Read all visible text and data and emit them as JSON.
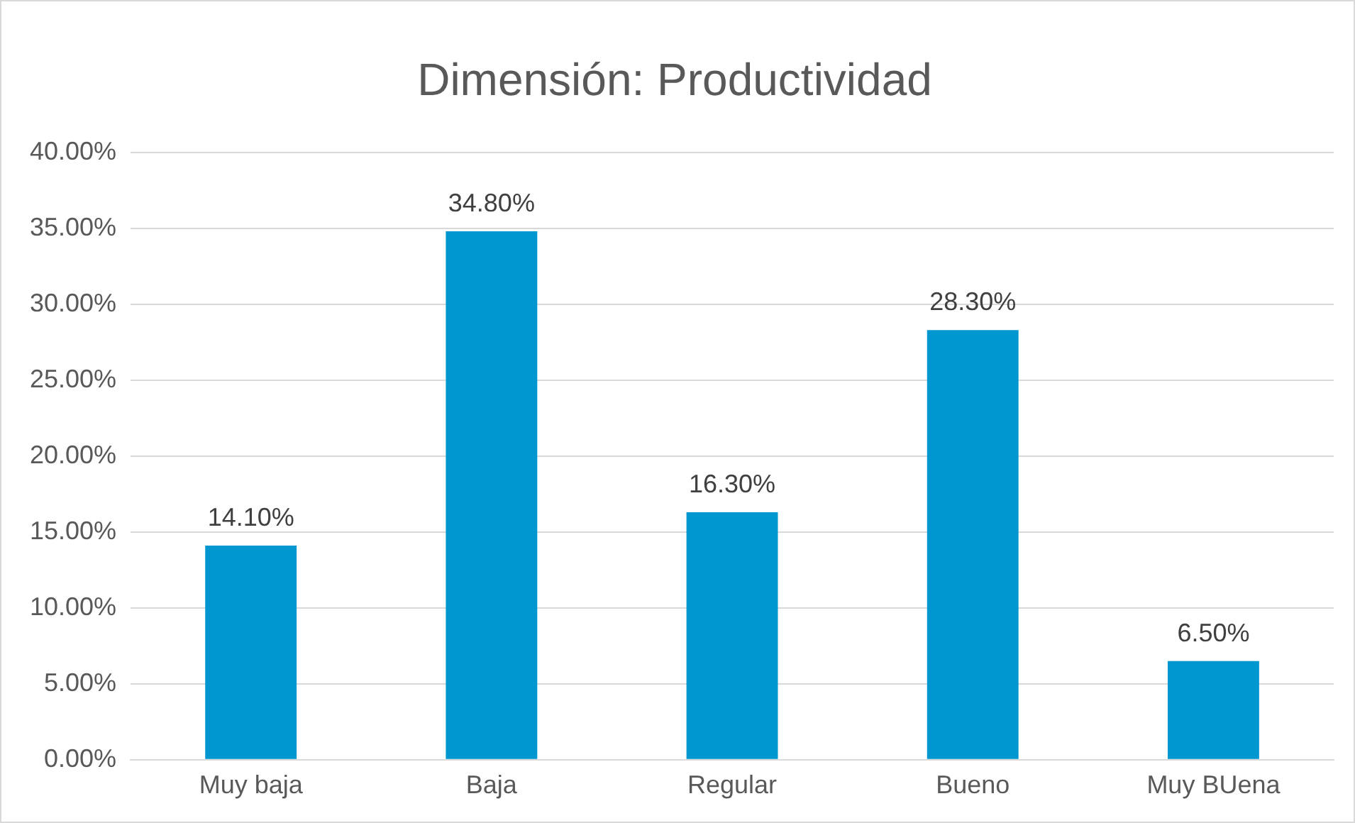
{
  "chart_data": {
    "type": "bar",
    "title": "Dimensión: Productividad",
    "categories": [
      "Muy baja",
      "Baja",
      "Regular",
      "Bueno",
      "Muy BUena"
    ],
    "values": [
      14.1,
      34.8,
      16.3,
      28.3,
      6.5
    ],
    "value_labels": [
      "14.10%",
      "34.80%",
      "16.30%",
      "28.30%",
      "6.50%"
    ],
    "color": "#0096cf",
    "ylim": [
      0,
      40
    ],
    "yticks": [
      {
        "value": 0,
        "label": "0.00%"
      },
      {
        "value": 5,
        "label": "5.00%"
      },
      {
        "value": 10,
        "label": "10.00%"
      },
      {
        "value": 15,
        "label": "15.00%"
      },
      {
        "value": 20,
        "label": "20.00%"
      },
      {
        "value": 25,
        "label": "25.00%"
      },
      {
        "value": 30,
        "label": "30.00%"
      },
      {
        "value": 35,
        "label": "35.00%"
      },
      {
        "value": 40,
        "label": "40.00%"
      }
    ],
    "grid": "y",
    "legend": false
  }
}
